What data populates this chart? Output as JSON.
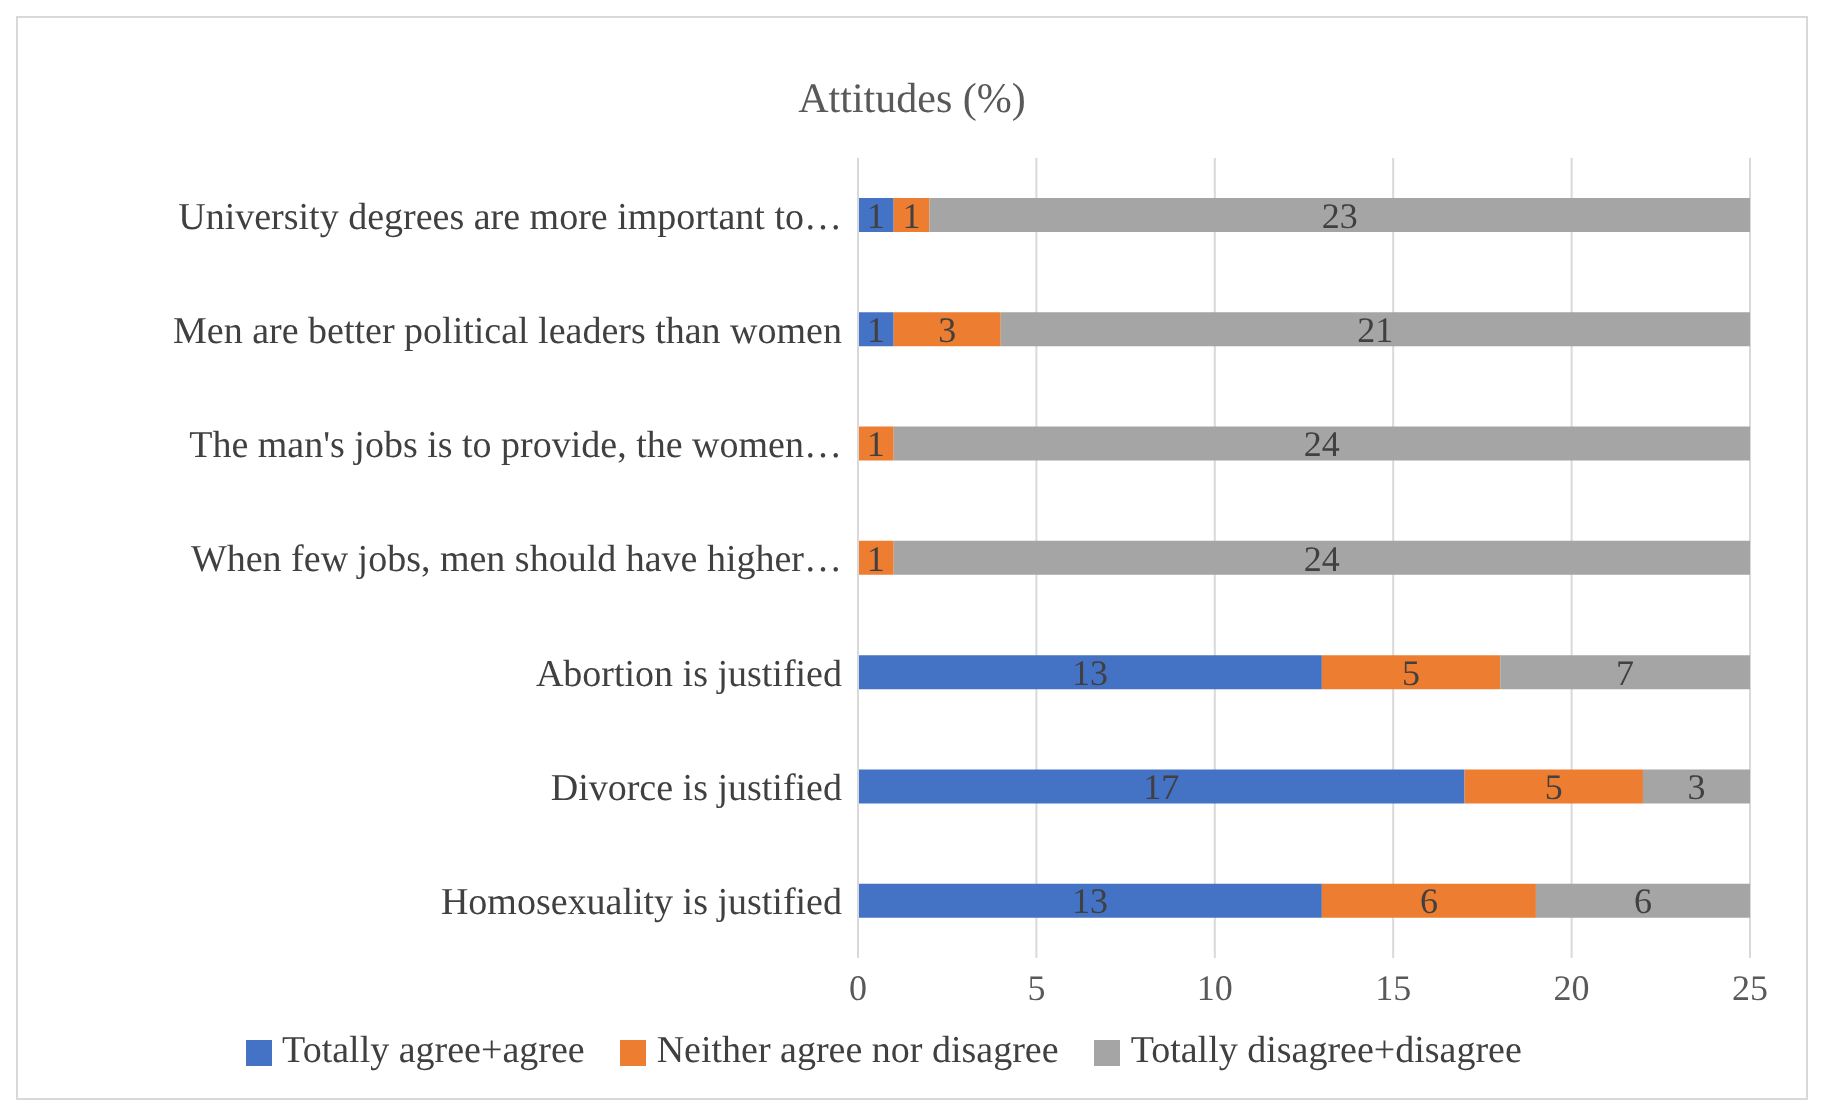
{
  "chart_data": {
    "type": "bar",
    "orientation": "horizontal",
    "stacked": true,
    "title": "Attitudes (%)",
    "categories": [
      "University degrees are more important to…",
      "Men are better political leaders than women",
      "The man's jobs is to provide, the women…",
      "When few jobs, men should have higher…",
      "Abortion is justified",
      "Divorce is justified",
      "Homosexuality is justified"
    ],
    "series": [
      {
        "name": "Totally agree+agree",
        "color": "#4472c4",
        "values": [
          1,
          1,
          null,
          null,
          13,
          17,
          13
        ]
      },
      {
        "name": "Neither agree nor disagree",
        "color": "#ed7d31",
        "values": [
          1,
          3,
          1,
          1,
          5,
          5,
          6
        ]
      },
      {
        "name": "Totally disagree+disagree",
        "color": "#a5a5a5",
        "values": [
          23,
          21,
          24,
          24,
          7,
          3,
          6
        ]
      }
    ],
    "xlim": [
      0,
      25
    ],
    "xticks": [
      0,
      5,
      10,
      15,
      20,
      25
    ],
    "grid": "x",
    "legend": "bottom",
    "data_labels": true
  }
}
